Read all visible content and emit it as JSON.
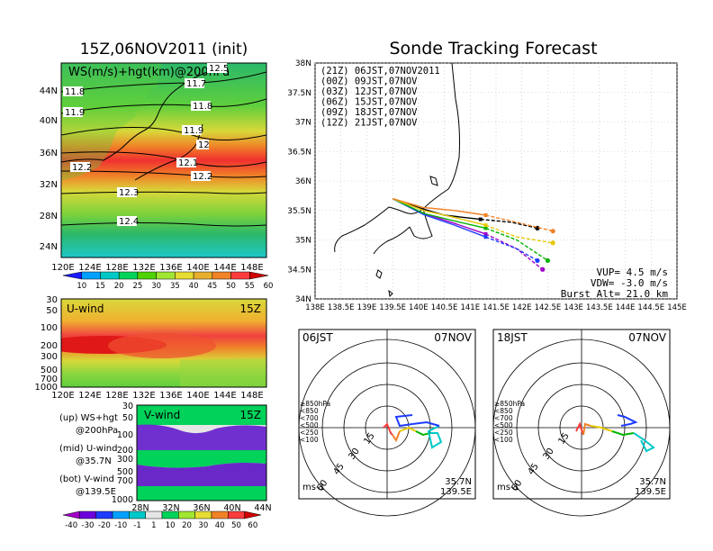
{
  "page": {
    "left_title": "15Z,06NOV2011 (init)",
    "right_title": "Sonde Tracking Forecast"
  },
  "ws_panel": {
    "label": "WS(m/s)+hgt(km)@200hPa",
    "lat_ticks": [
      "44N",
      "40N",
      "36N",
      "32N",
      "28N",
      "24N"
    ],
    "lon_ticks": [
      "120E",
      "124E",
      "128E",
      "132E",
      "136E",
      "140E",
      "144E",
      "148E"
    ],
    "contours": [
      "11.8",
      "11.9",
      "11.7",
      "11.8",
      "11.9",
      "12",
      "12.1",
      "12.2",
      "12.2",
      "12.3",
      "12.4",
      "12.5"
    ],
    "colorbar": [
      "10",
      "15",
      "20",
      "25",
      "30",
      "35",
      "40",
      "45",
      "50",
      "55",
      "60"
    ],
    "colorbar_colors": [
      "#1a1aff",
      "#00a0ff",
      "#00c8c8",
      "#00d25a",
      "#50d200",
      "#a0e632",
      "#e6dc32",
      "#e6af2d",
      "#f08228",
      "#fa3c3c",
      "#d20000"
    ]
  },
  "u_panel": {
    "label": "U-wind",
    "time": "15Z",
    "p_ticks": [
      "30",
      "50",
      "100",
      "200",
      "300",
      "500",
      "700",
      "1000"
    ],
    "lon_ticks": [
      "120E",
      "124E",
      "128E",
      "132E",
      "136E",
      "140E",
      "144E",
      "148E"
    ]
  },
  "v_panel": {
    "label": "V-wind",
    "time": "15Z",
    "p_ticks": [
      "30",
      "50",
      "100",
      "200",
      "300",
      "500",
      "700",
      "1000"
    ],
    "lat_ticks": [
      "28N",
      "32N",
      "36N",
      "40N",
      "44N"
    ],
    "colorbar": [
      "-40",
      "-30",
      "-20",
      "-10",
      "-1",
      "1",
      "10",
      "20",
      "30",
      "40",
      "50",
      "60"
    ],
    "colorbar_colors": [
      "#a000c8",
      "#6e00dc",
      "#1e3cff",
      "#00a0ff",
      "#00c8c8",
      "#e6e6e6",
      "#00d25a",
      "#a0e632",
      "#e6dc32",
      "#f08228",
      "#fa3c3c",
      "#d20000"
    ]
  },
  "legend_notes": {
    "up1": "(up) WS+hgt",
    "up2": "@200hPa",
    "mid1": "(mid) U-wind",
    "mid2": "@35.7N",
    "bot1": "(bot) V-wind",
    "bot2": "@139.5E"
  },
  "tracking": {
    "lat_ticks": [
      "38N",
      "37.5N",
      "37N",
      "36.5N",
      "36N",
      "35.5N",
      "35N",
      "34.5N",
      "34N"
    ],
    "lon_ticks": [
      "138E",
      "138.5E",
      "139E",
      "139.5E",
      "140E",
      "140.5E",
      "141E",
      "141.5E",
      "142E",
      "142.5E",
      "143E",
      "143.5E",
      "144E",
      "144.5E",
      "145E"
    ],
    "legend": [
      {
        "text": "(21Z) 06JST,07NOV2011",
        "color": "#000000"
      },
      {
        "text": "(00Z) 09JST,07NOV",
        "color": "#a000c8"
      },
      {
        "text": "(03Z) 12JST,07NOV",
        "color": "#1e3cff"
      },
      {
        "text": "(06Z) 15JST,07NOV",
        "color": "#00b400"
      },
      {
        "text": "(09Z) 18JST,07NOV",
        "color": "#e6c800"
      },
      {
        "text": "(12Z) 21JST,07NOV",
        "color": "#f08228"
      }
    ],
    "vup": "VUP= 4.5 m/s",
    "vdw": "VDW= -3.0 m/s",
    "burst": "Burst Alt= 21.0 km"
  },
  "polar_left": {
    "time": "06JST",
    "date": "07NOV",
    "lat": "35.7N",
    "lon": "139.5E",
    "unit": "ms-1"
  },
  "polar_right": {
    "time": "18JST",
    "date": "07NOV",
    "lat": "35.7N",
    "lon": "139.5E",
    "unit": "ms-1"
  },
  "polar_legend": [
    {
      "text": "≥850hPa",
      "color": "#fa3c3c"
    },
    {
      "text": "<850",
      "color": "#f08228"
    },
    {
      "text": "<700",
      "color": "#e6c800"
    },
    {
      "text": "<500",
      "color": "#00b400"
    },
    {
      "text": "<250",
      "color": "#00c8c8"
    },
    {
      "text": "<100",
      "color": "#1e3cff"
    }
  ],
  "polar_rings": [
    "15",
    "30",
    "45",
    "60"
  ],
  "chart_data": [
    {
      "type": "heatmap",
      "title": "WS(m/s)+hgt(km)@200hPa",
      "x_ticks": [
        "120E",
        "124E",
        "128E",
        "132E",
        "136E",
        "140E",
        "144E",
        "148E"
      ],
      "y_ticks": [
        "24N",
        "28N",
        "32N",
        "36N",
        "40N",
        "44N"
      ],
      "contour_labels": [
        11.7,
        11.8,
        11.9,
        12,
        12.1,
        12.2,
        12.3,
        12.4,
        12.5
      ],
      "colorbar": [
        10,
        15,
        20,
        25,
        30,
        35,
        40,
        45,
        50,
        55,
        60
      ]
    },
    {
      "type": "heatmap",
      "title": "U-wind",
      "x_ticks": [
        "120E",
        "124E",
        "128E",
        "132E",
        "136E",
        "140E",
        "144E",
        "148E"
      ],
      "y_ticks": [
        30,
        50,
        100,
        200,
        300,
        500,
        700,
        1000
      ]
    },
    {
      "type": "heatmap",
      "title": "V-wind",
      "x_ticks": [
        "28N",
        "32N",
        "36N",
        "40N",
        "44N"
      ],
      "y_ticks": [
        30,
        50,
        100,
        200,
        300,
        500,
        700,
        1000
      ],
      "colorbar": [
        -40,
        -30,
        -20,
        -10,
        -1,
        1,
        10,
        20,
        30,
        40,
        50,
        60
      ]
    },
    {
      "type": "line",
      "title": "Sonde Tracking Forecast",
      "xlim": [
        138,
        145
      ],
      "ylim": [
        34,
        38
      ],
      "series": [
        {
          "name": "(21Z) 06JST,07NOV2011",
          "color": "#000000",
          "x": [
            139.5,
            140.0,
            140.5,
            141.2,
            141.8,
            142.3
          ],
          "y": [
            35.7,
            35.55,
            35.42,
            35.35,
            35.3,
            35.2
          ]
        },
        {
          "name": "(00Z) 09JST,07NOV",
          "color": "#a000c8",
          "x": [
            139.5,
            140.1,
            140.7,
            141.3,
            141.9,
            142.4
          ],
          "y": [
            35.7,
            35.45,
            35.28,
            35.1,
            34.85,
            34.5
          ]
        },
        {
          "name": "(03Z) 12JST,07NOV",
          "color": "#1e3cff",
          "x": [
            139.5,
            140.1,
            140.7,
            141.3,
            141.9,
            142.3
          ],
          "y": [
            35.7,
            35.43,
            35.25,
            35.05,
            34.85,
            34.65
          ]
        },
        {
          "name": "(06Z) 15JST,07NOV",
          "color": "#00b400",
          "x": [
            139.5,
            140.1,
            140.7,
            141.3,
            141.9,
            142.5
          ],
          "y": [
            35.7,
            35.45,
            35.32,
            35.2,
            35.0,
            34.65
          ]
        },
        {
          "name": "(09Z) 18JST,07NOV",
          "color": "#e6c800",
          "x": [
            139.5,
            140.1,
            140.7,
            141.3,
            141.9,
            142.6
          ],
          "y": [
            35.7,
            35.5,
            35.38,
            35.25,
            35.05,
            34.95
          ]
        },
        {
          "name": "(12Z) 21JST,07NOV",
          "color": "#f08228",
          "x": [
            139.5,
            140.1,
            140.7,
            141.3,
            141.9,
            142.6
          ],
          "y": [
            35.7,
            35.55,
            35.5,
            35.42,
            35.3,
            35.15
          ]
        }
      ]
    }
  ]
}
